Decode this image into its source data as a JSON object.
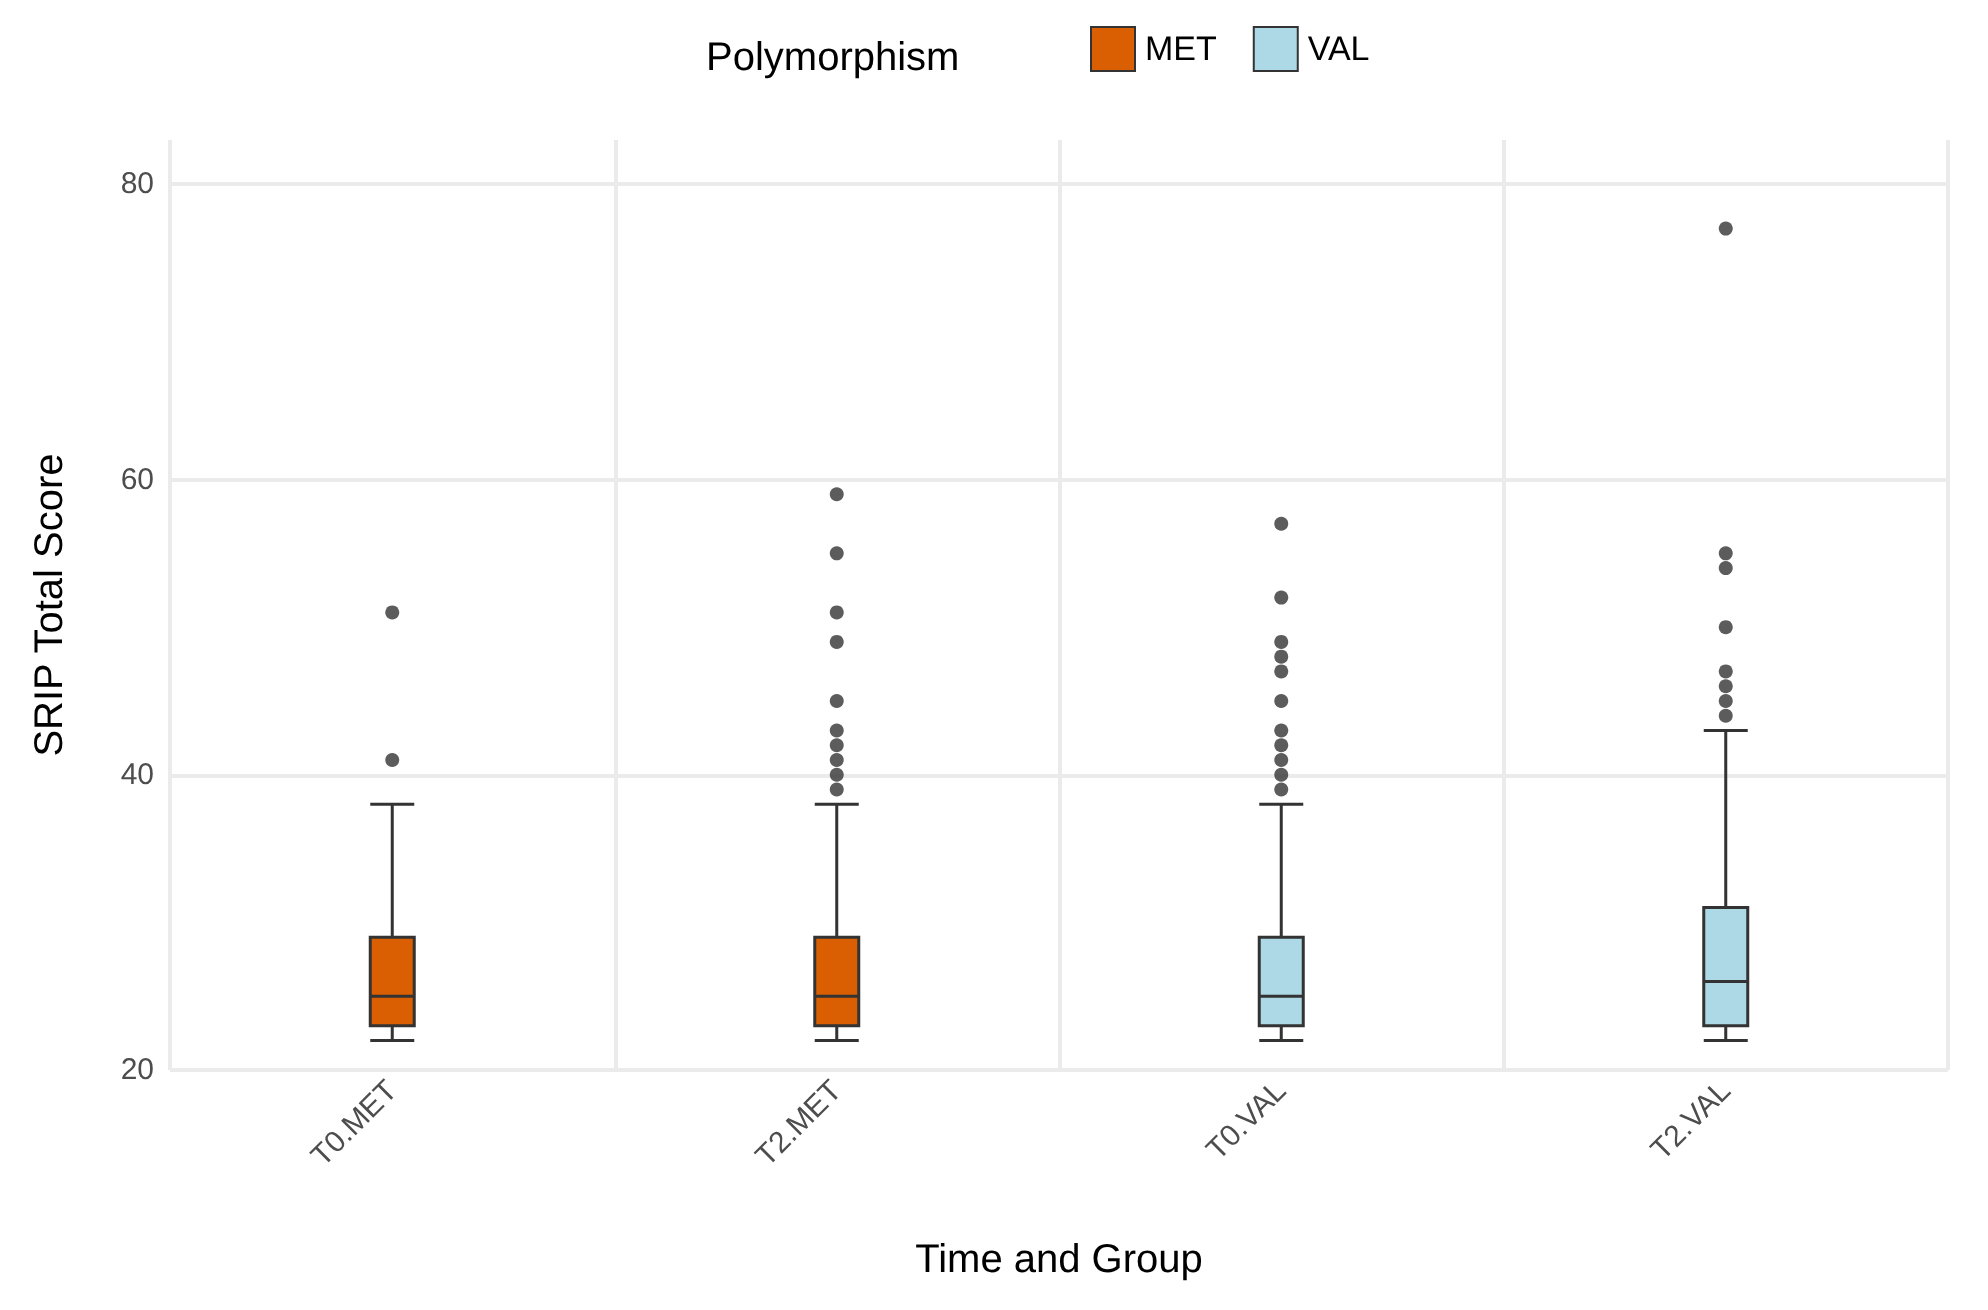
{
  "chart_data": {
    "type": "box",
    "xlabel": "Time and Group",
    "ylabel": "SRIP Total Score",
    "legend_title": "Polymorphism",
    "legend": "top",
    "grid": true,
    "categories": [
      "T0.MET",
      "T2.MET",
      "T0.VAL",
      "T2.VAL"
    ],
    "ylim": [
      20,
      83
    ],
    "yticks": [
      20,
      40,
      60,
      80
    ],
    "series": [
      {
        "name": "MET",
        "color": "#d95f02",
        "boxes": [
          {
            "low": 22,
            "q1": 23,
            "median": 25,
            "q3": 29,
            "high": 38,
            "outliers": [
              41,
              51
            ]
          },
          {
            "low": 22,
            "q1": 23,
            "median": 25,
            "q3": 29,
            "high": 38,
            "outliers": [
              39,
              40,
              41,
              42,
              43,
              45,
              49,
              51,
              55,
              59
            ]
          },
          null,
          null
        ]
      },
      {
        "name": "VAL",
        "color": "#add8e6",
        "boxes": [
          null,
          null,
          {
            "low": 22,
            "q1": 23,
            "median": 25,
            "q3": 29,
            "high": 38,
            "outliers": [
              39,
              40,
              41,
              42,
              43,
              45,
              47,
              48,
              49,
              52,
              57
            ]
          },
          {
            "low": 22,
            "q1": 23,
            "median": 26,
            "q3": 31,
            "high": 43,
            "outliers": [
              44,
              45,
              46,
              47,
              50,
              54,
              55,
              77
            ]
          }
        ]
      }
    ]
  }
}
